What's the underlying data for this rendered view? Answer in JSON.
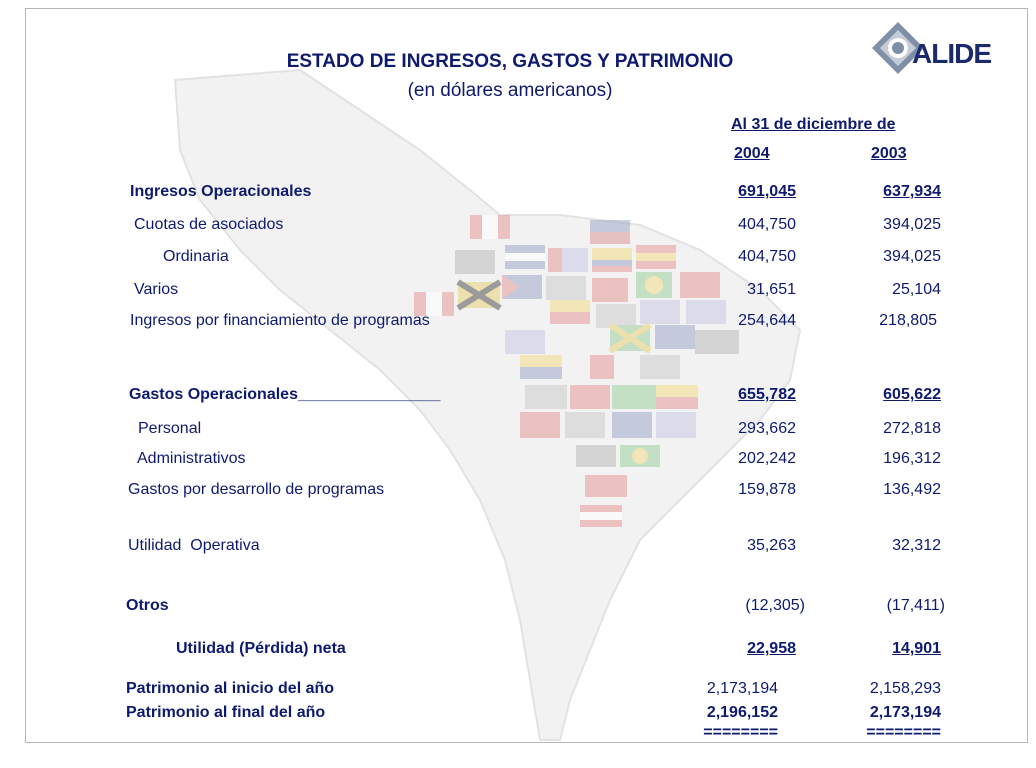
{
  "logo": {
    "text": "ALIDE",
    "icon": "alide-diamond-icon"
  },
  "title": "ESTADO DE INGRESOS, GASTOS Y PATRIMONIO",
  "subtitle": "(en dólares americanos)",
  "period_label": "Al 31 de diciembre de",
  "years": [
    "2004",
    "2003"
  ],
  "rows": {
    "ingresos_operacionales": {
      "label": "Ingresos Operacionales",
      "v2004": "691,045",
      "v2003": "637,934"
    },
    "cuotas": {
      "label": "Cuotas de asociados",
      "v2004": "404,750",
      "v2003": "394,025"
    },
    "ordinaria": {
      "label": "Ordinaria",
      "v2004": "404,750",
      "v2003": "394,025"
    },
    "varios": {
      "label": "Varios",
      "v2004": "31,651",
      "v2003": "25,104"
    },
    "financiamiento": {
      "label": "Ingresos por financiamiento de programas",
      "v2004": "254,644",
      "v2003": "218,805"
    },
    "gastos_operacionales": {
      "label": "Gastos Operacionales________________",
      "v2004": "655,782",
      "v2003": "605,622"
    },
    "personal": {
      "label": "Personal",
      "v2004": "293,662",
      "v2003": "272,818"
    },
    "administrativos": {
      "label": "Administrativos",
      "v2004": "202,242",
      "v2003": "196,312"
    },
    "desarrollo": {
      "label": "Gastos por desarrollo de programas",
      "v2004": "159,878",
      "v2003": "136,492"
    },
    "utilidad_operativa": {
      "label": "Utilidad  Operativa",
      "v2004": "35,263",
      "v2003": "32,312"
    },
    "otros": {
      "label": "Otros",
      "v2004": "(12,305)",
      "v2003": "(17,411)"
    },
    "utilidad_neta": {
      "label": "Utilidad (Pérdida) neta",
      "v2004": "22,958",
      "v2003": "14,901"
    },
    "patrimonio_inicio": {
      "label": "Patrimonio al inicio del año",
      "v2004": "2,173,194",
      "v2003": "2,158,293"
    },
    "patrimonio_final": {
      "label": "Patrimonio al final del año",
      "v2004": "2,196,152",
      "v2003": "2,173,194"
    }
  },
  "double_rule": "========",
  "colors": {
    "text": "#0e1a6e",
    "map": "#f0f0f0",
    "border": "#b5b5b5"
  }
}
